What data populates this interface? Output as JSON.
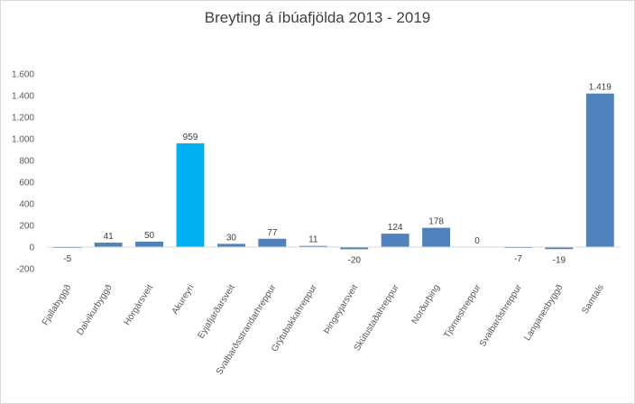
{
  "chart_data": {
    "type": "bar",
    "title": "Breyting á íbúafjölda 2013 - 2019",
    "xlabel": "",
    "ylabel": "",
    "categories": [
      "Fjallabyggð",
      "Dalvíkurbyggð",
      "Hörgársveit",
      "Akureyri",
      "Eyjafjarðarsveit",
      "Svalbarðsstrandarhreppur",
      "Grýtubakkahreppur",
      "Þingeyjarsveit",
      "Skútustaðahreppur",
      "Norðurþing",
      "Tjörneshreppur",
      "Svalbarðshreppur",
      "Langanesbyggð",
      "Samtals"
    ],
    "values": [
      -5,
      41,
      50,
      959,
      30,
      77,
      11,
      -20,
      124,
      178,
      0,
      -7,
      -19,
      1419
    ],
    "value_labels": [
      "-5",
      "41",
      "50",
      "959",
      "30",
      "77",
      "11",
      "-20",
      "124",
      "178",
      "0",
      "-7",
      "-19",
      "1.419"
    ],
    "ylim": [
      -200,
      1600
    ],
    "yticks": [
      -200,
      0,
      200,
      400,
      600,
      800,
      1000,
      1200,
      1400,
      1600
    ],
    "ytick_labels": [
      "-200",
      "0",
      "200",
      "400",
      "600",
      "800",
      "1.000",
      "1.200",
      "1.400",
      "1.600"
    ],
    "grid": false,
    "colors": {
      "default": "#4f81bd",
      "highlight": "#00b0f0"
    },
    "highlight_category": "Akureyri"
  }
}
